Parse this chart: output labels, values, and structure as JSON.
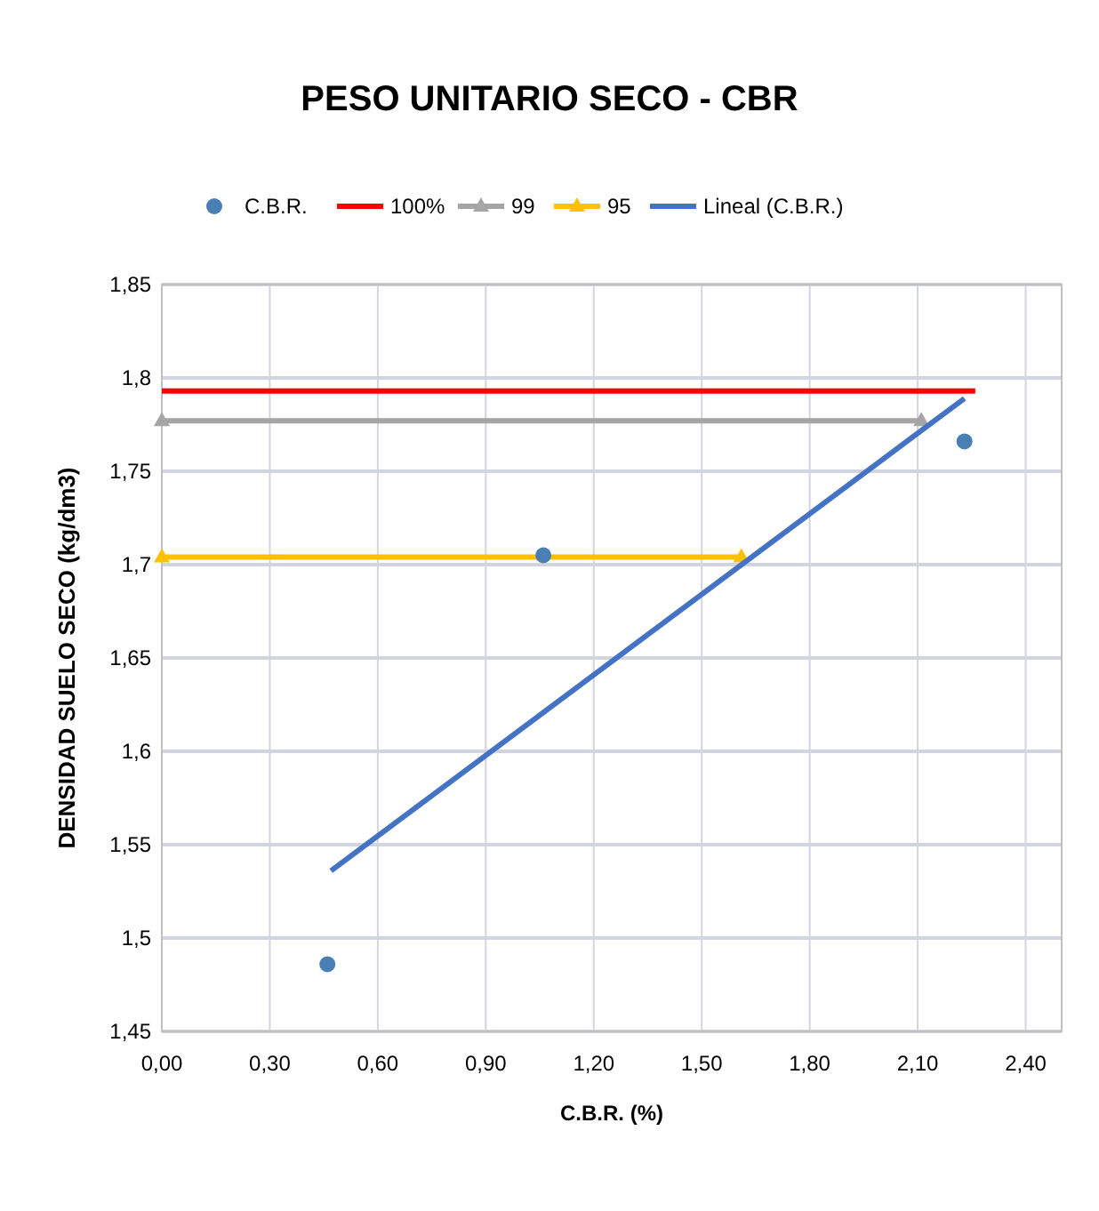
{
  "chart_data": {
    "type": "scatter",
    "title": "PESO UNITARIO SECO - CBR",
    "xlabel": "C.B.R. (%)",
    "ylabel": "DENSIDAD SUELO SECO (kg/dm3)",
    "xlim": [
      0,
      2.5
    ],
    "xticks": [
      {
        "value": 0,
        "label": "0,00"
      },
      {
        "value": 0.3,
        "label": "0,30"
      },
      {
        "value": 0.6,
        "label": "0,60"
      },
      {
        "value": 0.9,
        "label": "0,90"
      },
      {
        "value": 1.2,
        "label": "1,20"
      },
      {
        "value": 1.5,
        "label": "1,50"
      },
      {
        "value": 1.8,
        "label": "1,80"
      },
      {
        "value": 2.1,
        "label": "2,10"
      },
      {
        "value": 2.4,
        "label": "2,40"
      }
    ],
    "ylim": [
      1.45,
      1.85
    ],
    "yticks": [
      {
        "value": 1.45,
        "label": "1,45"
      },
      {
        "value": 1.5,
        "label": "1,5"
      },
      {
        "value": 1.55,
        "label": "1,55"
      },
      {
        "value": 1.6,
        "label": "1,6"
      },
      {
        "value": 1.65,
        "label": "1,65"
      },
      {
        "value": 1.7,
        "label": "1,7"
      },
      {
        "value": 1.75,
        "label": "1,75"
      },
      {
        "value": 1.8,
        "label": "1,8"
      },
      {
        "value": 1.85,
        "label": "1,85"
      }
    ],
    "grid": true,
    "legend": "top",
    "series": [
      {
        "name": "C.B.R.",
        "color": "#4a7fb5",
        "marker": "circle",
        "x": [
          0.46,
          1.06,
          2.23
        ],
        "values": [
          1.486,
          1.705,
          1.766
        ]
      },
      {
        "name": "100%",
        "type": "line",
        "color": "#ff0000",
        "marker": "none",
        "x": [
          0,
          2.26
        ],
        "values": [
          1.793,
          1.793
        ]
      },
      {
        "name": "99",
        "type": "line",
        "color": "#a5a5a5",
        "marker": "triangle",
        "x": [
          0,
          2.11
        ],
        "values": [
          1.777,
          1.777
        ]
      },
      {
        "name": "95",
        "type": "line",
        "color": "#ffc000",
        "marker": "triangle",
        "x": [
          0,
          1.61
        ],
        "values": [
          1.704,
          1.704
        ]
      },
      {
        "name": "Lineal (C.B.R.)",
        "type": "line",
        "color": "#4472c4",
        "marker": "none",
        "x": [
          0.47,
          2.23
        ],
        "values": [
          1.536,
          1.789
        ]
      }
    ]
  }
}
